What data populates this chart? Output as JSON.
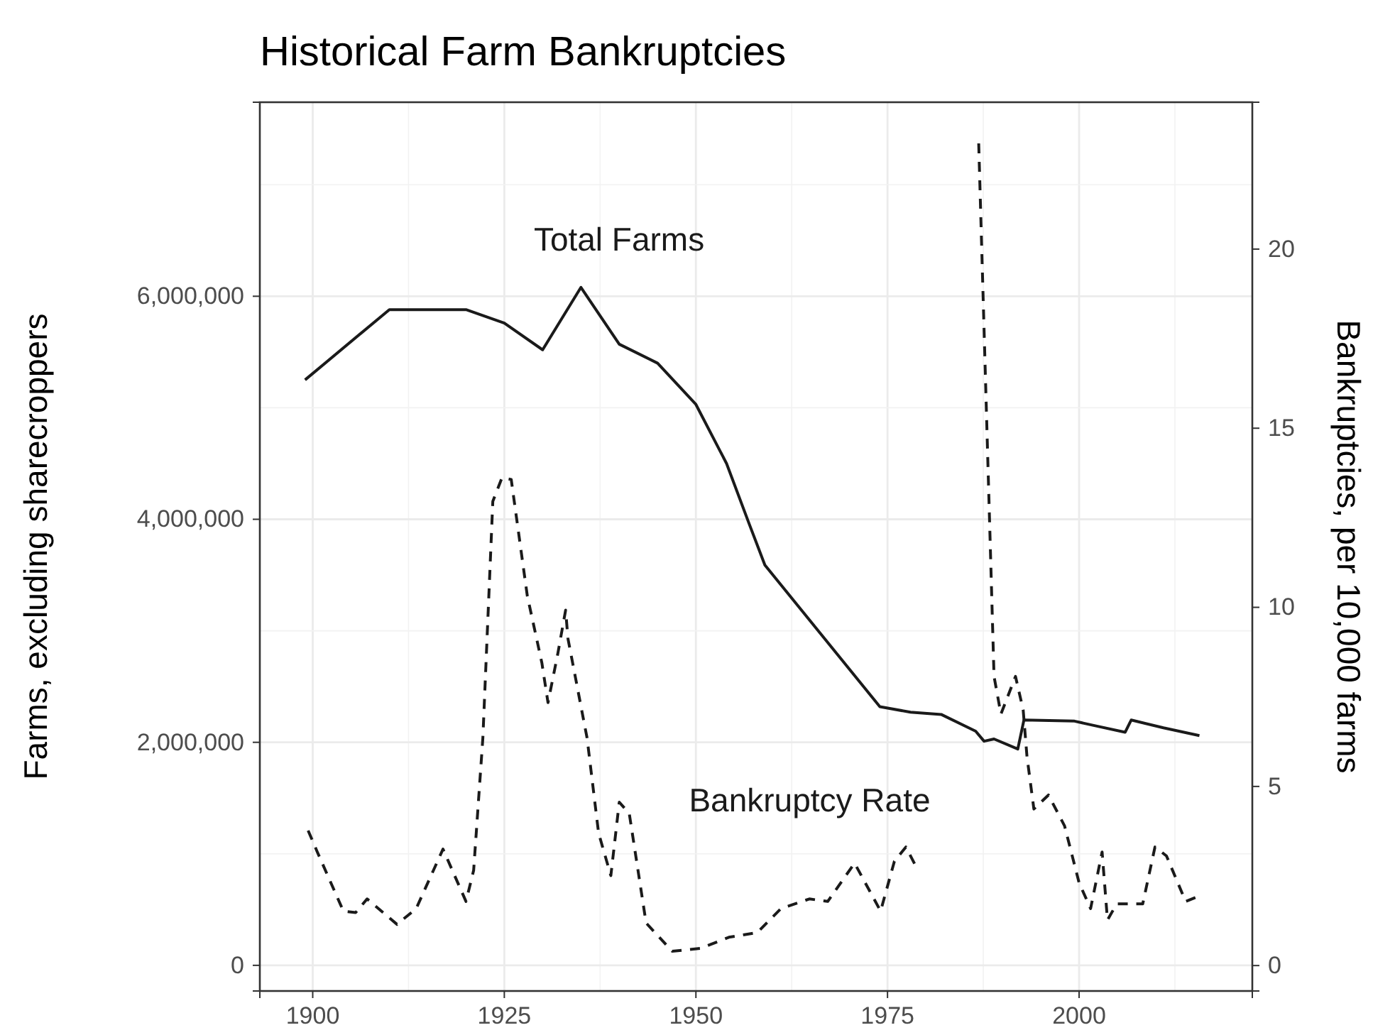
{
  "chart_data": {
    "type": "line",
    "title": "Historical Farm Bankruptcies",
    "ylabel": "Farms, excluding sharecroppers",
    "y2label": "Bankruptcies, per 10,000 farms",
    "xlim": [
      1893.1,
      2022.6
    ],
    "xticks": [
      1900,
      1925,
      1950,
      1975,
      2000
    ],
    "ylim": [
      -230000,
      7740000
    ],
    "yticks": [
      0,
      {
        "value": 2000000,
        "label": "2,000,000"
      },
      {
        "value": 4000000,
        "label": "4,000,000"
      },
      {
        "value": 6000000,
        "label": "6,000,000"
      }
    ],
    "y2lim": [
      -0.71,
      24.1
    ],
    "y2ticks": [
      0,
      5,
      10,
      15,
      20
    ],
    "grid": true,
    "marker": "none",
    "series": [
      {
        "name": "Total Farms",
        "color": "#1a1a1a",
        "line_style": "solid",
        "x": [
          1899,
          1910,
          1920,
          1925,
          1930,
          1935,
          1940,
          1945,
          1950,
          1954,
          1957,
          1959,
          1974,
          1978,
          1982,
          1986.5,
          1987.6,
          1988.9,
          1992,
          1992.8,
          1999.4,
          2002,
          2006,
          2006.8,
          2011,
          2015.7
        ],
        "values": [
          5250000,
          5880000,
          5880000,
          5760000,
          5520000,
          6080000,
          5570000,
          5400000,
          5030000,
          4500000,
          3950000,
          3590000,
          2320000,
          2270000,
          2250000,
          2100000,
          2010000,
          2030000,
          1940000,
          2200000,
          2190000,
          2150000,
          2090000,
          2200000,
          2130000,
          2060000
        ]
      },
      {
        "name": "Bankruptcy Rate",
        "color": "#1a1a1a",
        "line_style": "dashed",
        "axis": "y2",
        "x": [
          1899.4,
          1900.6,
          1904,
          1905.6,
          1907.1,
          1911,
          1913.5,
          1917,
          1920,
          1921,
          1922.2,
          1923.5,
          1924.7,
          1925.9,
          1928,
          1929.9,
          1930.7,
          1932,
          1933,
          1933.3,
          1935.8,
          1937.3,
          1938.9,
          1940,
          1941.3,
          1943.5,
          1946.9,
          1950.6,
          1954.3,
          1958,
          1961.1,
          1964.8,
          1967.2,
          1970.7,
          1974.1,
          1975.9,
          1977.4,
          1979,
          1983,
          1986.9,
          1988.9,
          1989.8,
          1991.7,
          1992.7,
          1993.2,
          1994.1,
          1996,
          1998.1,
          2000,
          2001.5,
          2003,
          2003.7,
          2004.9,
          2008.3,
          2009.9,
          2011.4,
          2013.9,
          2015.4
        ],
        "values": [
          3.77,
          3.17,
          1.52,
          1.48,
          1.86,
          1.15,
          1.59,
          3.25,
          1.79,
          2.66,
          6.35,
          12.96,
          13.62,
          13.57,
          10.32,
          8.45,
          7.34,
          8.73,
          9.92,
          9.13,
          6.35,
          3.7,
          2.51,
          4.56,
          4.25,
          1.19,
          0.4,
          0.48,
          0.79,
          0.92,
          1.59,
          1.86,
          1.79,
          2.86,
          1.52,
          2.91,
          3.31,
          2.65,
          null,
          22.95,
          8.07,
          7.02,
          8.07,
          7.14,
          5.83,
          4.37,
          4.76,
          3.9,
          2.31,
          1.59,
          3.17,
          1.27,
          1.72,
          1.72,
          3.31,
          3.06,
          1.79,
          1.92
        ]
      }
    ]
  }
}
